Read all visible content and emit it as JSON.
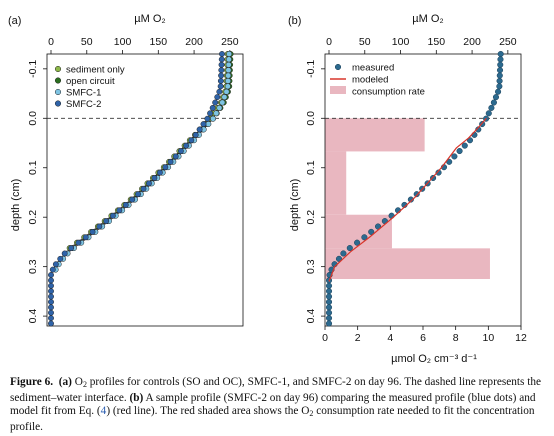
{
  "figure": {
    "caption": {
      "label": "Figure 6.",
      "part_a_label": "(a)",
      "part_a_text_pre": "O",
      "part_a_sub": "2",
      "part_a_text_post": " profiles for controls (SO and OC), SMFC-1, and SMFC-2 on day 96. The dashed line represents the sediment–water interface.",
      "part_b_label": "(b)",
      "part_b_text_1": "A sample profile (SMFC-2 on day 96) comparing the measured profile (blue dots) and model fit from Eq. (",
      "part_b_ref": "4",
      "part_b_text_2": ") (red line). The red shaded area shows the O",
      "part_b_sub": "2",
      "part_b_text_3": " consumption rate needed to fit the concentration profile."
    }
  },
  "chart_data": [
    {
      "type": "line",
      "panel_label": "(a)",
      "top_axis_label": "µM O₂",
      "ylabel": "depth (cm)",
      "xlim": [
        0,
        260
      ],
      "ylim": [
        -0.13,
        0.42
      ],
      "x_ticks": [
        0,
        50,
        100,
        150,
        200,
        250
      ],
      "y_ticks": [
        -0.1,
        0.0,
        0.1,
        0.2,
        0.3,
        0.4
      ],
      "y_inverted": true,
      "interface_depth": 0.0,
      "legend": {
        "position": "top-left",
        "entries": [
          "sediment only",
          "open circuit",
          "SMFC-1",
          "SMFC-2"
        ]
      },
      "series": [
        {
          "name": "sediment only",
          "color": "#8db84a",
          "x_offset": -3,
          "y_start": -0.13,
          "y_end": 0.27,
          "bottom": -2,
          "profile": [
            [
              -0.13,
              250
            ],
            [
              -0.06,
              248
            ],
            [
              -0.03,
              240
            ],
            [
              0.0,
              226
            ],
            [
              0.04,
              200
            ],
            [
              0.1,
              160
            ],
            [
              0.16,
              118
            ],
            [
              0.2,
              85
            ],
            [
              0.24,
              50
            ],
            [
              0.27,
              22
            ],
            [
              0.3,
              5
            ],
            [
              0.32,
              0
            ]
          ]
        },
        {
          "name": "open circuit",
          "color": "#2a6e1f",
          "x_offset": 1,
          "y_start": -0.13,
          "y_end": 0.27,
          "bottom": -2,
          "profile": [
            [
              -0.13,
              250
            ],
            [
              -0.06,
              248
            ],
            [
              -0.03,
              240
            ],
            [
              0.0,
              226
            ],
            [
              0.04,
              200
            ],
            [
              0.1,
              160
            ],
            [
              0.16,
              118
            ],
            [
              0.2,
              85
            ],
            [
              0.24,
              50
            ],
            [
              0.27,
              22
            ],
            [
              0.3,
              5
            ],
            [
              0.32,
              0
            ]
          ]
        },
        {
          "name": "SMFC-1",
          "color": "#7ec4e3",
          "x_offset": 3,
          "y_start": -0.13,
          "y_end": 0.31,
          "bottom": 0,
          "profile": [
            [
              -0.13,
              246
            ],
            [
              -0.06,
              244
            ],
            [
              -0.03,
              236
            ],
            [
              0.0,
              224
            ],
            [
              0.04,
              200
            ],
            [
              0.1,
              160
            ],
            [
              0.16,
              118
            ],
            [
              0.2,
              85
            ],
            [
              0.24,
              50
            ],
            [
              0.27,
              22
            ],
            [
              0.3,
              5
            ],
            [
              0.32,
              0
            ]
          ]
        },
        {
          "name": "SMFC-2",
          "color": "#2f63a8",
          "x_offset": -1,
          "y_start": -0.13,
          "y_end": 0.42,
          "bottom": 0,
          "profile": [
            [
              -0.13,
              240
            ],
            [
              -0.06,
              238
            ],
            [
              -0.03,
              230
            ],
            [
              0.0,
              220
            ],
            [
              0.04,
              200
            ],
            [
              0.1,
              160
            ],
            [
              0.16,
              118
            ],
            [
              0.2,
              85
            ],
            [
              0.24,
              50
            ],
            [
              0.27,
              22
            ],
            [
              0.3,
              5
            ],
            [
              0.32,
              0
            ]
          ]
        }
      ],
      "step": 0.0109
    },
    {
      "type": "scatter",
      "panel_label": "(b)",
      "top_axis_label": "µM O₂",
      "xlabel": "µmol O₂ cm⁻³ d⁻¹",
      "ylabel": "depth (cm)",
      "top_xlim": [
        0,
        260
      ],
      "xlim": [
        0,
        12
      ],
      "ylim": [
        -0.13,
        0.42
      ],
      "x_ticks_top": [
        0,
        50,
        100,
        150,
        200,
        250
      ],
      "x_ticks_bottom": [
        0,
        2,
        4,
        6,
        8,
        10,
        12
      ],
      "y_ticks": [
        -0.1,
        0.0,
        0.1,
        0.2,
        0.3,
        0.4
      ],
      "y_inverted": true,
      "interface_depth": 0.0,
      "legend": {
        "position": "top-left",
        "entries": [
          "measured",
          "modeled",
          "consumption rate"
        ]
      },
      "measured": {
        "name": "measured",
        "color": "#2c6a8f",
        "y_start": -0.13,
        "y_end": 0.42,
        "step": 0.0109,
        "profile": [
          [
            -0.13,
            240
          ],
          [
            -0.06,
            238
          ],
          [
            -0.03,
            230
          ],
          [
            0.0,
            220
          ],
          [
            0.04,
            200
          ],
          [
            0.1,
            160
          ],
          [
            0.16,
            118
          ],
          [
            0.2,
            85
          ],
          [
            0.24,
            50
          ],
          [
            0.27,
            22
          ],
          [
            0.3,
            5
          ],
          [
            0.32,
            0
          ]
        ]
      },
      "modeled": {
        "name": "modeled",
        "color": "#d8352a",
        "profile": [
          [
            0.0,
            220
          ],
          [
            0.02,
            208
          ],
          [
            0.04,
            195
          ],
          [
            0.06,
            178
          ],
          [
            0.1,
            157
          ],
          [
            0.16,
            120
          ],
          [
            0.2,
            90
          ],
          [
            0.24,
            57
          ],
          [
            0.27,
            30
          ],
          [
            0.3,
            8
          ],
          [
            0.33,
            0
          ]
        ]
      },
      "consumption_rate": {
        "name": "consumption rate",
        "color": "#e9b7c0",
        "steps": [
          {
            "depth_from": 0.0,
            "depth_to": 0.067,
            "rate": 6.1
          },
          {
            "depth_from": 0.067,
            "depth_to": 0.195,
            "rate": 1.3
          },
          {
            "depth_from": 0.195,
            "depth_to": 0.263,
            "rate": 4.1
          },
          {
            "depth_from": 0.263,
            "depth_to": 0.325,
            "rate": 10.1
          }
        ]
      }
    }
  ]
}
